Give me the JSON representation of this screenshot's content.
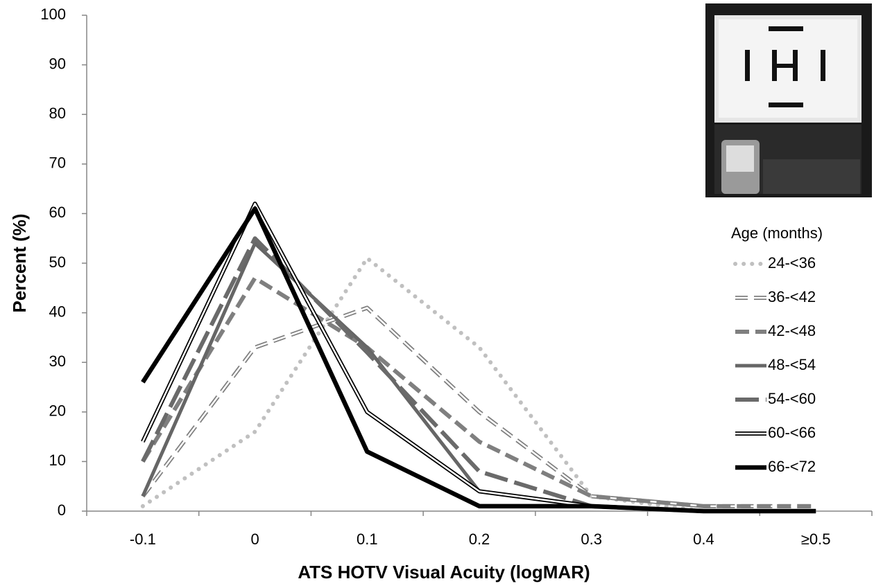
{
  "chart_data": {
    "type": "line",
    "x_label": "ATS HOTV Visual Acuity (logMAR)",
    "y_label": "Percent (%)",
    "legend_title": "Age (months)",
    "categories": [
      "-0.1",
      "0",
      "0.1",
      "0.2",
      "0.3",
      "0.4",
      "≥0.5"
    ],
    "ylim": [
      0,
      100
    ],
    "yticks": [
      0,
      10,
      20,
      30,
      40,
      50,
      60,
      70,
      80,
      90,
      100
    ],
    "series": [
      {
        "name": "24-<36",
        "color": "#c0c0c0",
        "style": "dotted",
        "values": [
          1,
          16,
          51,
          33,
          3,
          0,
          0
        ]
      },
      {
        "name": "36-<42",
        "color": "#7f7f7f",
        "style": "double-dashed",
        "values": [
          3,
          33,
          41,
          20,
          3,
          1,
          1
        ]
      },
      {
        "name": "42-<48",
        "color": "#7f7f7f",
        "style": "dashed",
        "values": [
          10,
          47,
          33,
          14,
          3,
          1,
          1
        ]
      },
      {
        "name": "48-<54",
        "color": "#666666",
        "style": "solid",
        "values": [
          3,
          54,
          33,
          4,
          1,
          0,
          0
        ]
      },
      {
        "name": "54-<60",
        "color": "#6a6a6a",
        "style": "long-dashed",
        "values": [
          10,
          55,
          32,
          8,
          1,
          0,
          0
        ]
      },
      {
        "name": "60-<66",
        "color": "#000000",
        "style": "double",
        "values": [
          14,
          62,
          20,
          4,
          1,
          0,
          0
        ]
      },
      {
        "name": "66-<72",
        "color": "#000000",
        "style": "solid-thick",
        "values": [
          26,
          61,
          12,
          1,
          1,
          0,
          0
        ]
      }
    ]
  }
}
